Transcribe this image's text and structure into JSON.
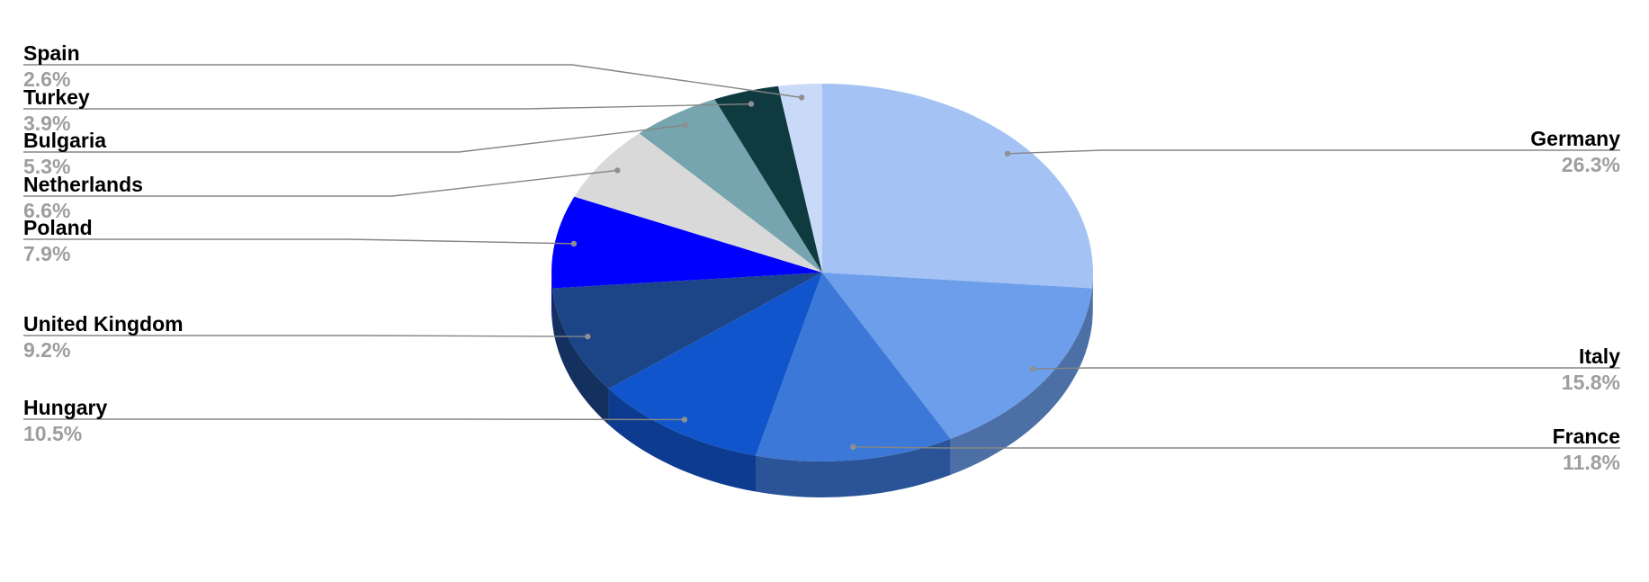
{
  "chart_data": {
    "type": "pie",
    "style": "3d",
    "direction": "clockwise",
    "start_angle_deg": 0,
    "background": "#ffffff",
    "label_name_color": "#000000",
    "label_value_color": "#9e9e9e",
    "leader_line_color": "#858585",
    "leader_dot_color": "#8f8f8f",
    "slices": [
      {
        "label": "Germany",
        "value": 26.3,
        "display": "26.3%",
        "color": "#a4c2f4"
      },
      {
        "label": "Italy",
        "value": 15.8,
        "display": "15.8%",
        "color": "#6d9eeb"
      },
      {
        "label": "France",
        "value": 11.8,
        "display": "11.8%",
        "color": "#3c78d8"
      },
      {
        "label": "Hungary",
        "value": 10.5,
        "display": "10.5%",
        "color": "#1155cc"
      },
      {
        "label": "United Kingdom",
        "value": 9.2,
        "display": "9.2%",
        "color": "#1c4587"
      },
      {
        "label": "Poland",
        "value": 7.9,
        "display": "7.9%",
        "color": "#0000ff"
      },
      {
        "label": "Netherlands",
        "value": 6.6,
        "display": "6.6%",
        "color": "#d9d9d9"
      },
      {
        "label": "Bulgaria",
        "value": 5.3,
        "display": "5.3%",
        "color": "#76a5af"
      },
      {
        "label": "Turkey",
        "value": 3.9,
        "display": "3.9%",
        "color": "#0f3a40"
      },
      {
        "label": "Spain",
        "value": 2.6,
        "display": "2.6%",
        "color": "#c9daf8"
      }
    ]
  }
}
